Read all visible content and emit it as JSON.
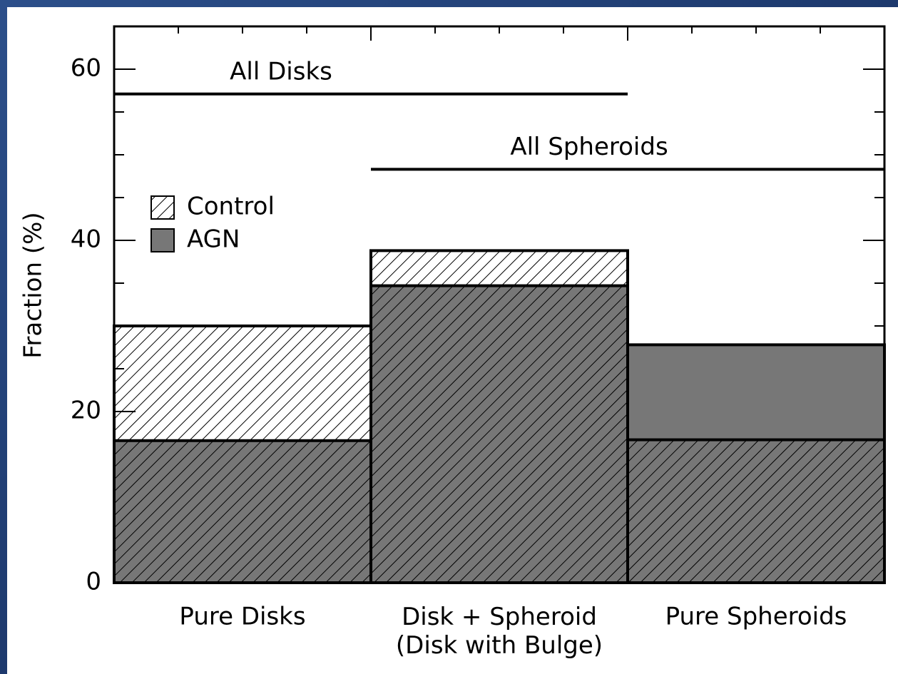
{
  "chart_data": {
    "type": "bar",
    "ylabel": "Fraction (%)",
    "categories": [
      "Pure Disks",
      "Disk + Spheroid\n(Disk with Bulge)",
      "Pure Spheroids"
    ],
    "series": [
      {
        "name": "Control",
        "color": "#000000",
        "hatch": true,
        "values": [
          30,
          38.8,
          16.7
        ]
      },
      {
        "name": "AGN",
        "color": "#777777",
        "hatch": false,
        "values": [
          16.6,
          34.7,
          27.8
        ]
      }
    ],
    "annotations": [
      {
        "text": "All Disks",
        "y": 57.1
      },
      {
        "text": "All Spheroids",
        "y": 48.3
      }
    ],
    "ylim": [
      0,
      65
    ],
    "yticks": [
      0,
      20,
      40,
      60
    ],
    "legend": "upper left"
  }
}
